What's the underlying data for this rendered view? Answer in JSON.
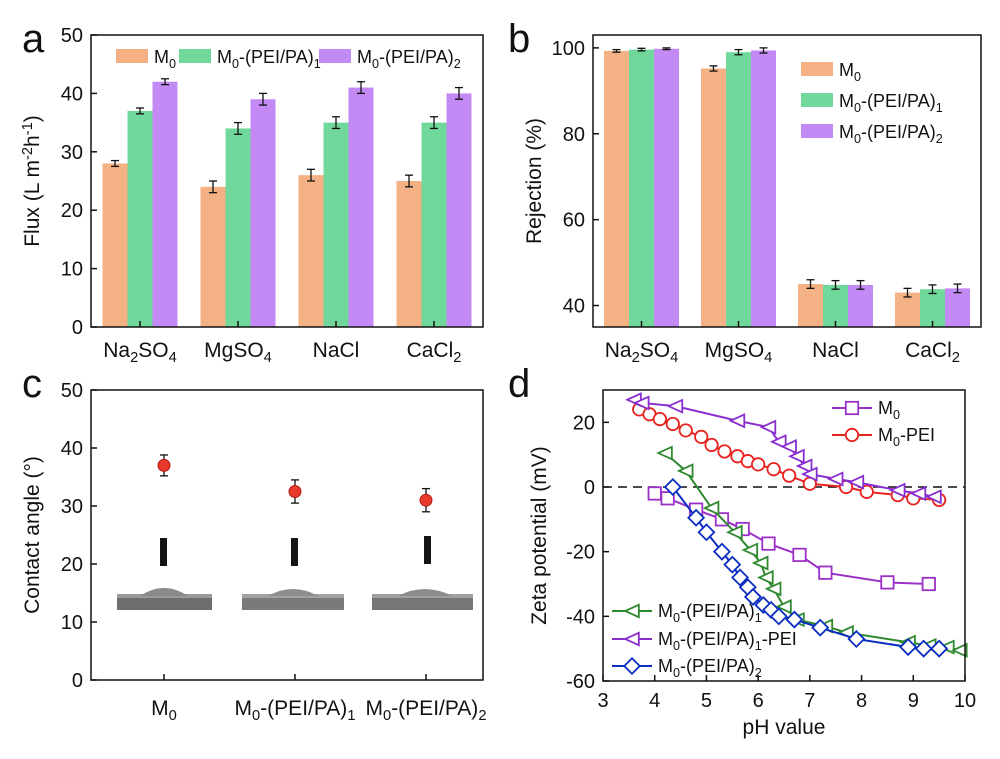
{
  "colors": {
    "M0": "#f4b183",
    "M0_PEI_PA_1": "#6fd89a",
    "M0_PEI_PA_2": "#c389f5",
    "errorbar": "#111111",
    "dot": "#e8392d",
    "zeta_M0": "#9b30c7",
    "zeta_M0_PEI": "#e8231f",
    "zeta_PEIPA1": "#2f8a2f",
    "zeta_PEIPA1_PEI": "#8a2fcf",
    "zeta_PEIPA2": "#0b2ec0"
  },
  "chart_data": [
    {
      "panel": "a",
      "type": "bar",
      "ylabel_parts": [
        [
          "Flux (L m",
          ""
        ],
        [
          "-2",
          "sup"
        ],
        [
          "h",
          ""
        ],
        [
          "-1",
          "sup"
        ],
        [
          ")",
          ""
        ]
      ],
      "ylim": [
        0,
        50
      ],
      "yticks": [
        "0",
        "10",
        "20",
        "30",
        "40",
        "50"
      ],
      "legend_position": "top",
      "categories": [
        [
          [
            "Na",
            ""
          ],
          [
            "2",
            "sub"
          ],
          [
            "SO",
            ""
          ],
          [
            "4",
            "sub"
          ]
        ],
        [
          [
            "MgSO",
            ""
          ],
          [
            "4",
            "sub"
          ]
        ],
        [
          [
            "NaCl",
            ""
          ]
        ],
        [
          [
            "CaCl",
            ""
          ],
          [
            "2",
            "sub"
          ]
        ]
      ],
      "series": [
        {
          "name_parts": [
            [
              "M",
              ""
            ],
            [
              "0",
              "sub"
            ]
          ],
          "color_key": "M0",
          "values": [
            28,
            24,
            26,
            25
          ],
          "errors": [
            0.5,
            1.0,
            1.0,
            1.0
          ]
        },
        {
          "name_parts": [
            [
              "M",
              ""
            ],
            [
              "0",
              "sub"
            ],
            [
              "-(PEI/PA)",
              ""
            ],
            [
              "1",
              "sub"
            ]
          ],
          "color_key": "M0_PEI_PA_1",
          "values": [
            37,
            34,
            35,
            35
          ],
          "errors": [
            0.5,
            1.0,
            1.0,
            1.0
          ]
        },
        {
          "name_parts": [
            [
              "M",
              ""
            ],
            [
              "0",
              "sub"
            ],
            [
              "-(PEI/PA)",
              ""
            ],
            [
              "2",
              "sub"
            ]
          ],
          "color_key": "M0_PEI_PA_2",
          "values": [
            42,
            39,
            41,
            40
          ],
          "errors": [
            0.5,
            1.0,
            1.0,
            1.0
          ]
        }
      ]
    },
    {
      "panel": "b",
      "type": "bar",
      "ylabel_parts": [
        [
          "Rejection (%)",
          ""
        ]
      ],
      "ylim": [
        35,
        103
      ],
      "yticks": [
        "40",
        "60",
        "80",
        "100"
      ],
      "legend_position": "right",
      "categories": [
        [
          [
            "Na",
            ""
          ],
          [
            "2",
            "sub"
          ],
          [
            "SO",
            ""
          ],
          [
            "4",
            "sub"
          ]
        ],
        [
          [
            "MgSO",
            ""
          ],
          [
            "4",
            "sub"
          ]
        ],
        [
          [
            "NaCl",
            ""
          ]
        ],
        [
          [
            "CaCl",
            ""
          ],
          [
            "2",
            "sub"
          ]
        ]
      ],
      "series": [
        {
          "name_parts": [
            [
              "M",
              ""
            ],
            [
              "0",
              "sub"
            ]
          ],
          "color_key": "M0",
          "values": [
            99.3,
            95.2,
            45.0,
            43.0
          ],
          "errors": [
            0.3,
            0.6,
            1.0,
            1.0
          ]
        },
        {
          "name_parts": [
            [
              "M",
              ""
            ],
            [
              "0",
              "sub"
            ],
            [
              "-(PEI/PA)",
              ""
            ],
            [
              "1",
              "sub"
            ]
          ],
          "color_key": "M0_PEI_PA_1",
          "values": [
            99.6,
            99.0,
            44.8,
            43.8
          ],
          "errors": [
            0.3,
            0.6,
            1.0,
            1.0
          ]
        },
        {
          "name_parts": [
            [
              "M",
              ""
            ],
            [
              "0",
              "sub"
            ],
            [
              "-(PEI/PA)",
              ""
            ],
            [
              "2",
              "sub"
            ]
          ],
          "color_key": "M0_PEI_PA_2",
          "values": [
            99.8,
            99.4,
            44.8,
            44.0
          ],
          "errors": [
            0.2,
            0.6,
            1.0,
            1.0
          ]
        }
      ]
    },
    {
      "panel": "c",
      "type": "scatter",
      "ylabel_parts": [
        [
          "Contact angle (°)",
          ""
        ]
      ],
      "ylim": [
        0,
        50
      ],
      "yticks": [
        "0",
        "10",
        "20",
        "30",
        "40",
        "50"
      ],
      "categories": [
        [
          [
            "M",
            ""
          ],
          [
            "0",
            "sub"
          ]
        ],
        [
          [
            "M",
            ""
          ],
          [
            "0",
            "sub"
          ],
          [
            "-(PEI/PA)",
            ""
          ],
          [
            "1",
            "sub"
          ]
        ],
        [
          [
            "M",
            ""
          ],
          [
            "0",
            "sub"
          ],
          [
            "-(PEI/PA)",
            ""
          ],
          [
            "2",
            "sub"
          ]
        ]
      ],
      "values": [
        37.0,
        32.5,
        31.0
      ],
      "errors": [
        1.8,
        2.0,
        2.0
      ]
    },
    {
      "panel": "d",
      "type": "line",
      "xlabel_parts": [
        [
          "pH value",
          ""
        ]
      ],
      "ylabel_parts": [
        [
          "Zeta potential (mV)",
          ""
        ]
      ],
      "xlim": [
        3,
        10
      ],
      "ylim": [
        -60,
        30
      ],
      "xticks": [
        "3",
        "4",
        "5",
        "6",
        "7",
        "8",
        "9",
        "10"
      ],
      "yticks": [
        "-60",
        "-40",
        "-20",
        "0",
        "20"
      ],
      "reference_line": 0,
      "series": [
        {
          "name_parts": [
            [
              "M",
              ""
            ],
            [
              "0",
              "sub"
            ]
          ],
          "color_key": "zeta_M0",
          "marker": "square",
          "legend_group": "top",
          "x": [
            4.0,
            4.25,
            4.8,
            5.3,
            5.7,
            6.2,
            6.8,
            7.3,
            8.5,
            9.3
          ],
          "y": [
            -2,
            -3.5,
            -7,
            -10,
            -13,
            -17.5,
            -21,
            -26.5,
            -29.5,
            -30
          ]
        },
        {
          "name_parts": [
            [
              "M",
              ""
            ],
            [
              "0",
              "sub"
            ],
            [
              "-PEI",
              ""
            ]
          ],
          "color_key": "zeta_M0_PEI",
          "marker": "circle",
          "legend_group": "top",
          "x": [
            3.7,
            3.9,
            4.1,
            4.35,
            4.6,
            4.9,
            5.1,
            5.35,
            5.6,
            5.8,
            6.0,
            6.3,
            6.6,
            7.0,
            7.7,
            8.1,
            8.7,
            9.0,
            9.5
          ],
          "y": [
            24,
            22.5,
            21,
            19.5,
            17.5,
            15.5,
            13,
            11,
            9.5,
            8,
            7,
            5.5,
            3.5,
            1,
            0,
            -1.5,
            -2.5,
            -3.5,
            -4
          ]
        },
        {
          "name_parts": [
            [
              "M",
              ""
            ],
            [
              "0",
              "sub"
            ],
            [
              "-(PEI/PA)",
              ""
            ],
            [
              "1",
              "sub"
            ]
          ],
          "color_key": "zeta_PEIPA1",
          "marker": "triangle-left",
          "legend_group": "bottom",
          "x": [
            4.2,
            4.6,
            5.1,
            5.55,
            5.85,
            6.05,
            6.15,
            6.3,
            6.5,
            6.75,
            7.3,
            7.7,
            8.9,
            9.3,
            9.65,
            9.9
          ],
          "y": [
            10.5,
            5,
            -6.5,
            -14,
            -19.5,
            -23.5,
            -28,
            -31.5,
            -37,
            -41,
            -43,
            -45,
            -48,
            -49,
            -49.5,
            -50.5
          ]
        },
        {
          "name_parts": [
            [
              "M",
              ""
            ],
            [
              "0",
              "sub"
            ],
            [
              "-(PEI/PA)",
              ""
            ],
            [
              "1",
              "sub"
            ],
            [
              "-PEI",
              ""
            ]
          ],
          "color_key": "zeta_PEIPA1_PEI",
          "marker": "triangle-left",
          "legend_group": "bottom",
          "x": [
            3.6,
            3.75,
            4.4,
            5.6,
            6.2,
            6.4,
            6.6,
            6.75,
            6.9,
            7.0,
            7.5,
            7.9,
            8.7,
            9.1,
            9.4
          ],
          "y": [
            27,
            26,
            25,
            20.5,
            18.5,
            14,
            12.5,
            9.5,
            6.5,
            4,
            2.5,
            1.5,
            -1,
            -2,
            -3
          ]
        },
        {
          "name_parts": [
            [
              "M",
              ""
            ],
            [
              "0",
              "sub"
            ],
            [
              "-(PEI/PA)",
              ""
            ],
            [
              "2",
              "sub"
            ]
          ],
          "color_key": "zeta_PEIPA2",
          "marker": "diamond",
          "legend_group": "bottom",
          "x": [
            4.35,
            4.8,
            5.0,
            5.3,
            5.5,
            5.65,
            5.8,
            5.9,
            6.1,
            6.25,
            6.4,
            6.7,
            7.2,
            7.9,
            8.9,
            9.2,
            9.5
          ],
          "y": [
            0,
            -9.5,
            -14,
            -20,
            -24,
            -28,
            -31,
            -34,
            -36.5,
            -38,
            -40,
            -41,
            -43.5,
            -47,
            -49.5,
            -50,
            -50
          ]
        }
      ]
    }
  ]
}
